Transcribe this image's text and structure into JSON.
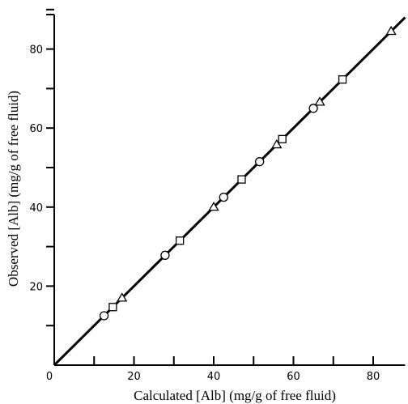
{
  "chart_data": {
    "type": "scatter",
    "xlabel": "Calculated [Alb] (mg/g of free fluid)",
    "ylabel": "Observed [Alb] (mg/g of free fluid)",
    "xlim": [
      0,
      88
    ],
    "ylim": [
      0,
      90
    ],
    "x_ticks": [
      0,
      10,
      20,
      30,
      40,
      50,
      60,
      70,
      80
    ],
    "x_tick_labels": [
      "0",
      "",
      "20",
      "",
      "40",
      "",
      "60",
      "",
      "80"
    ],
    "y_ticks": [
      0,
      10,
      20,
      30,
      40,
      50,
      60,
      70,
      80,
      90
    ],
    "y_tick_labels": [
      "",
      "",
      "20",
      "",
      "40",
      "",
      "60",
      "",
      "80",
      ""
    ],
    "grid": false,
    "legend": "none",
    "fit_line": {
      "x": [
        0,
        88
      ],
      "y": [
        0,
        88
      ]
    },
    "series": [
      {
        "marker": "circle",
        "x": [
          12.5,
          27.8,
          42.5,
          51.5,
          65.0
        ],
        "y": [
          12.5,
          27.8,
          42.5,
          51.5,
          65.0
        ]
      },
      {
        "marker": "square",
        "x": [
          14.7,
          31.5,
          47.0,
          57.2,
          72.3
        ],
        "y": [
          14.7,
          31.5,
          47.0,
          57.2,
          72.3
        ]
      },
      {
        "marker": "triangle",
        "x": [
          17.0,
          40.0,
          55.8,
          66.6,
          84.5
        ],
        "y": [
          17.0,
          40.0,
          55.8,
          66.6,
          84.5
        ]
      }
    ]
  }
}
